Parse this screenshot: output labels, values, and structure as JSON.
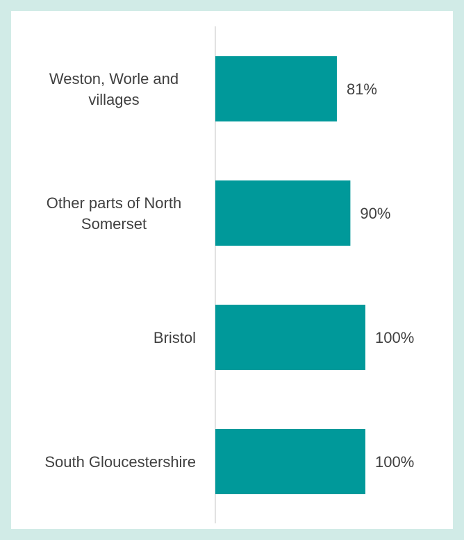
{
  "chart_data": {
    "type": "bar",
    "orientation": "horizontal",
    "categories": [
      [
        "Weston, Worle and",
        "villages"
      ],
      [
        "Other parts of North",
        "Somerset"
      ],
      [
        "Bristol"
      ],
      [
        "South Gloucestershire"
      ]
    ],
    "values": [
      81,
      90,
      100,
      100
    ],
    "value_labels": [
      "81%",
      "90%",
      "100%",
      "100%"
    ],
    "xlim": [
      0,
      100
    ],
    "title": "",
    "xlabel": "",
    "ylabel": "",
    "grid": false,
    "colors": {
      "bar": "#00999a",
      "axis": "#d9d9d9",
      "text": "#404040",
      "background": "#ffffff",
      "frame": "#d1ebe7"
    }
  }
}
